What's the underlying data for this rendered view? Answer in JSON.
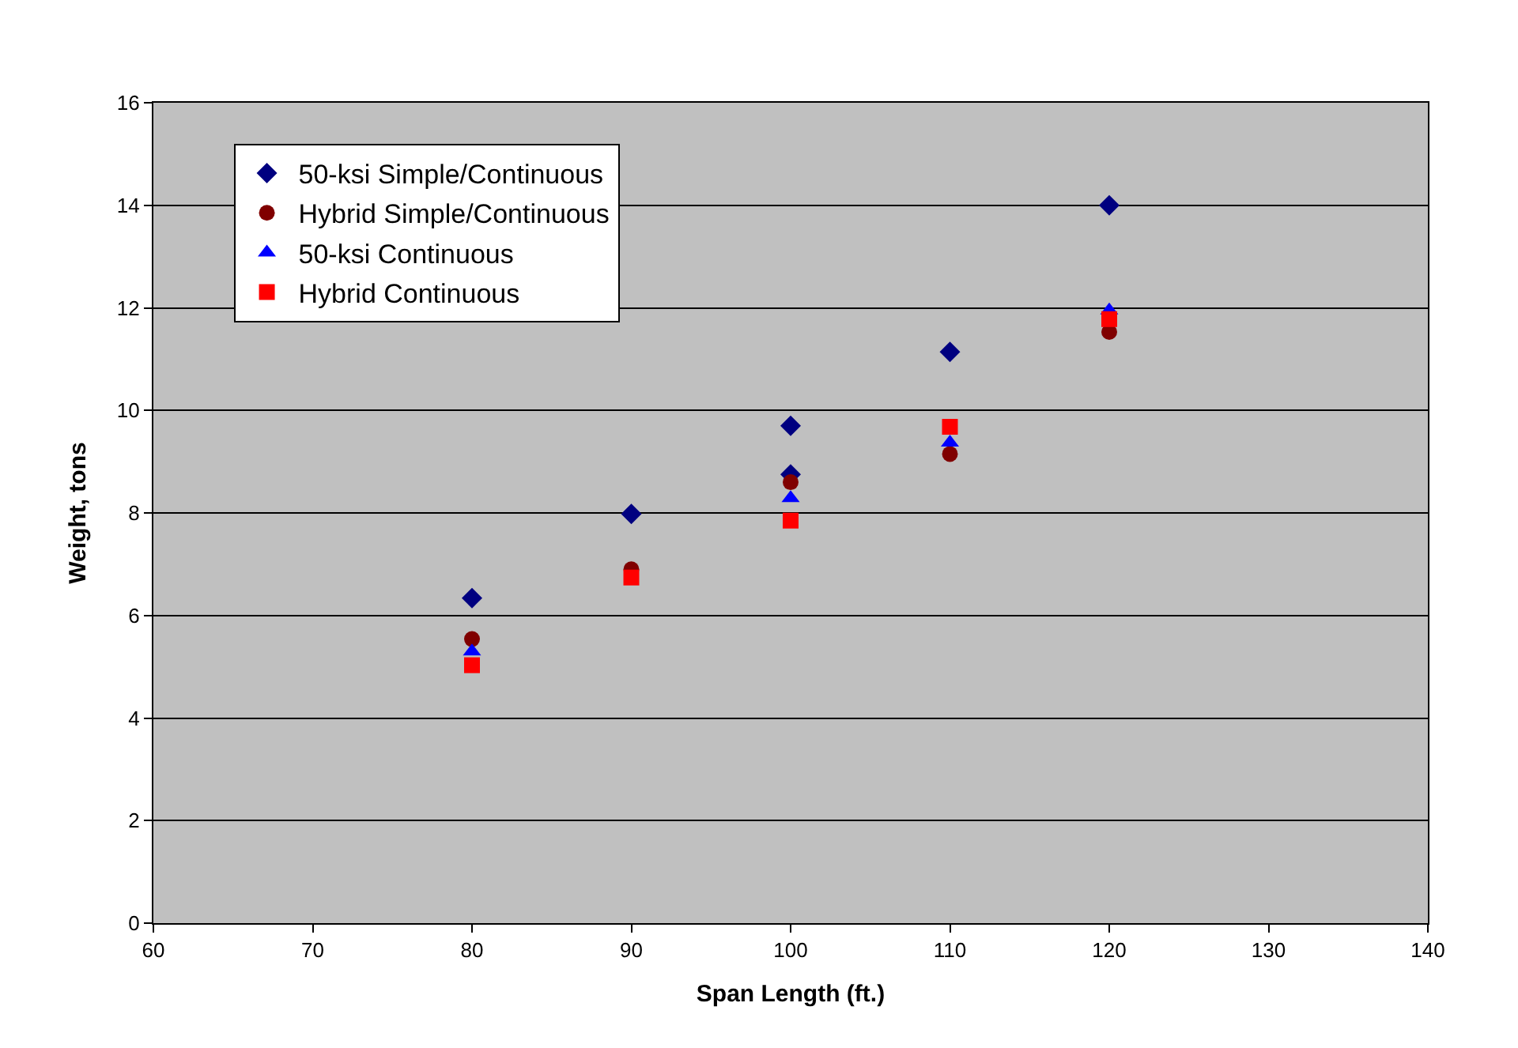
{
  "chart_data": {
    "type": "scatter",
    "xlabel": "Span Length (ft.)",
    "ylabel": "Weight, tons",
    "xlim": [
      60,
      140
    ],
    "xticks": [
      60,
      70,
      80,
      90,
      100,
      110,
      120,
      130,
      140
    ],
    "ylim": [
      0,
      16
    ],
    "yticks": [
      0,
      2,
      4,
      6,
      8,
      10,
      12,
      14,
      16
    ],
    "grid": "y",
    "legend": "top left",
    "series": [
      {
        "name": "50-ksi Simple/Continuous",
        "color": "#000080",
        "marker": "diamond",
        "x": [
          80,
          90,
          100,
          100,
          110,
          120
        ],
        "values": [
          6.34,
          7.98,
          9.7,
          8.75,
          11.14,
          14.0
        ]
      },
      {
        "name": "Hybrid Simple/Continuous",
        "color": "#800000",
        "marker": "circle",
        "x": [
          80,
          90,
          100,
          110,
          120
        ],
        "values": [
          5.54,
          6.9,
          8.6,
          9.15,
          11.53
        ]
      },
      {
        "name": "50-ksi Continuous",
        "color": "#0000ff",
        "marker": "triangle",
        "x": [
          80,
          90,
          100,
          110,
          120
        ],
        "values": [
          5.3,
          null,
          8.29,
          9.37,
          11.95
        ]
      },
      {
        "name": "Hybrid Continuous",
        "color": "#ff0000",
        "marker": "square",
        "x": [
          80,
          90,
          100,
          110,
          120
        ],
        "values": [
          5.03,
          6.74,
          7.85,
          9.68,
          11.78
        ]
      }
    ]
  }
}
